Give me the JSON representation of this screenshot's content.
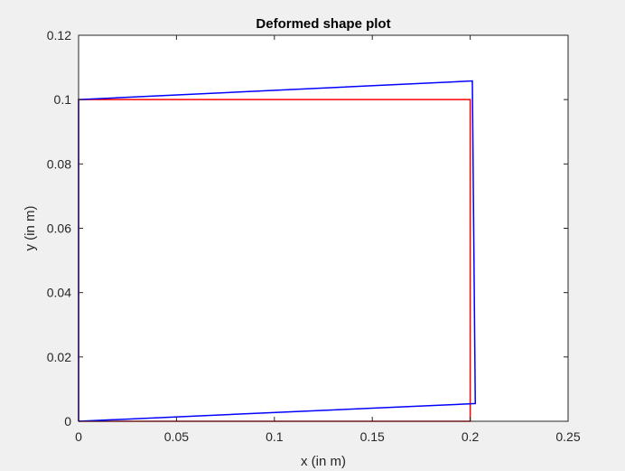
{
  "chart_data": {
    "type": "line",
    "title": "Deformed shape plot",
    "xlabel": "x (in m)",
    "ylabel": "y (in m)",
    "xlim": [
      0,
      0.25
    ],
    "ylim": [
      0,
      0.12
    ],
    "xticks": [
      0,
      0.05,
      0.1,
      0.15,
      0.2,
      0.25
    ],
    "xtick_labels": [
      "0",
      "0.05",
      "0.1",
      "0.15",
      "0.2",
      "0.25"
    ],
    "yticks": [
      0,
      0.02,
      0.04,
      0.06,
      0.08,
      0.1,
      0.12
    ],
    "ytick_labels": [
      "0",
      "0.02",
      "0.04",
      "0.06",
      "0.08",
      "0.1",
      "0.12"
    ],
    "grid": false,
    "series": [
      {
        "color": "#ff0000",
        "x": [
          0,
          0.2,
          0.2,
          0,
          0
        ],
        "y": [
          0,
          0,
          0.1,
          0.1,
          0
        ]
      },
      {
        "color": "#0000ff",
        "x": [
          0,
          0.2026,
          0.2011,
          0,
          0
        ],
        "y": [
          0,
          0.0055,
          0.1058,
          0.1,
          0
        ]
      }
    ]
  }
}
